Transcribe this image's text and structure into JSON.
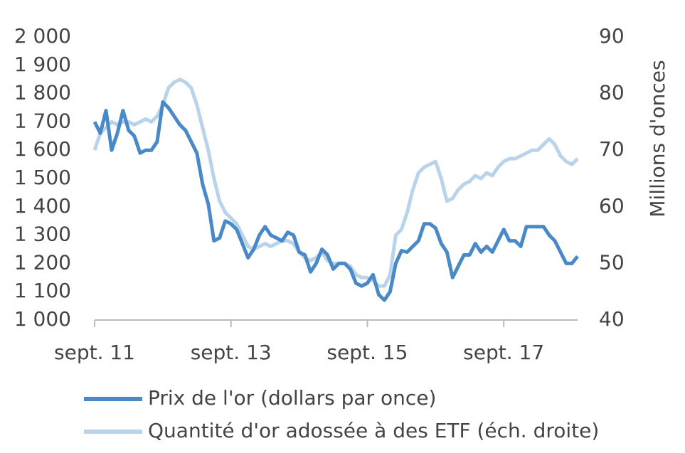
{
  "chart_data": {
    "type": "line",
    "y2label": "Millions d'onces",
    "categories": [
      "sept. 11",
      null,
      null,
      null,
      null,
      null,
      null,
      null,
      null,
      null,
      null,
      null,
      null,
      null,
      null,
      null,
      null,
      null,
      null,
      null,
      null,
      null,
      null,
      null,
      "sept. 13",
      null,
      null,
      null,
      null,
      null,
      null,
      null,
      null,
      null,
      null,
      null,
      null,
      null,
      null,
      null,
      null,
      null,
      null,
      null,
      null,
      null,
      null,
      null,
      "sept. 15",
      null,
      null,
      null,
      null,
      null,
      null,
      null,
      null,
      null,
      null,
      null,
      null,
      null,
      null,
      null,
      null,
      null,
      null,
      null,
      null,
      null,
      null,
      null,
      "sept. 17",
      null,
      null,
      null,
      null,
      null,
      null,
      null,
      null,
      null,
      null,
      null,
      null,
      null
    ],
    "series": [
      {
        "name": "Prix de l'or (dollars par once)",
        "color": "#4a89c8",
        "values": [
          1700,
          1660,
          1740,
          1600,
          1660,
          1740,
          1670,
          1650,
          1590,
          1600,
          1600,
          1630,
          1770,
          1750,
          1720,
          1690,
          1670,
          1630,
          1590,
          1480,
          1410,
          1280,
          1290,
          1350,
          1340,
          1320,
          1270,
          1220,
          1250,
          1300,
          1330,
          1300,
          1290,
          1280,
          1310,
          1300,
          1240,
          1230,
          1170,
          1200,
          1250,
          1230,
          1180,
          1200,
          1200,
          1180,
          1130,
          1120,
          1130,
          1160,
          1090,
          1070,
          1100,
          1200,
          1245,
          1240,
          1260,
          1280,
          1340,
          1340,
          1325,
          1270,
          1240,
          1150,
          1190,
          1230,
          1230,
          1270,
          1240,
          1260,
          1240,
          1280,
          1320,
          1280,
          1280,
          1260,
          1330,
          1330,
          1330,
          1330,
          1300,
          1280,
          1240,
          1200,
          1200,
          1225
        ]
      },
      {
        "name": "Quantité d'or adossée à des ETF (éch. droite)",
        "color": "#b9d3ea",
        "axis": "y2",
        "values": [
          70,
          73,
          74,
          75,
          74.5,
          75,
          75,
          74.5,
          75,
          75.5,
          75,
          76,
          78,
          81,
          82,
          82.5,
          82,
          81,
          78,
          74,
          70,
          65,
          61,
          59,
          58,
          57,
          55,
          53,
          52.5,
          53,
          53.5,
          53,
          53.5,
          54,
          54,
          53.5,
          52,
          51,
          50.5,
          51,
          52,
          50.5,
          50,
          50,
          50,
          49.5,
          48,
          47.5,
          47.5,
          47,
          46,
          46,
          48,
          55,
          56,
          59,
          63,
          66,
          67,
          67.5,
          68,
          65,
          61,
          61.5,
          63,
          64,
          64.5,
          65.5,
          65,
          66,
          65.5,
          67,
          68,
          68.5,
          68.5,
          69,
          69.5,
          70,
          70,
          71,
          72,
          71,
          69,
          68,
          67.5,
          68.5
        ]
      }
    ],
    "ylim": [
      1000,
      2000
    ],
    "yticks": [
      {
        "value": 1000,
        "label": "1 000"
      },
      {
        "value": 1100,
        "label": "1 100"
      },
      {
        "value": 1200,
        "label": "1 200"
      },
      {
        "value": 1300,
        "label": "1 300"
      },
      {
        "value": 1400,
        "label": "1 400"
      },
      {
        "value": 1500,
        "label": "1 500"
      },
      {
        "value": 1600,
        "label": "1 600"
      },
      {
        "value": 1700,
        "label": "1 700"
      },
      {
        "value": 1800,
        "label": "1 800"
      },
      {
        "value": 1900,
        "label": "1 900"
      },
      {
        "value": 2000,
        "label": "2 000"
      }
    ],
    "y2lim": [
      40,
      90
    ],
    "y2ticks": [
      40,
      50,
      60,
      70,
      80,
      90
    ],
    "grid": false,
    "legend": "bottom"
  }
}
